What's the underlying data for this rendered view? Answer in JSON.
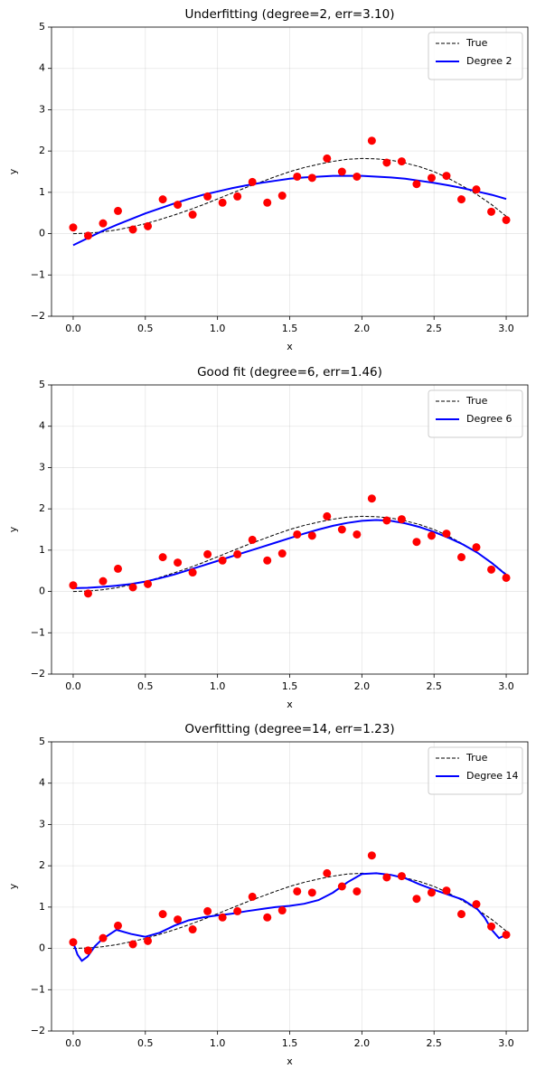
{
  "chart_data": [
    {
      "type": "line",
      "title": "Underfitting (degree=2, err=3.10)",
      "x_label": "x",
      "y_label": "y",
      "xlim": [
        -0.15,
        3.15
      ],
      "ylim": [
        -2,
        5
      ],
      "xticks": [
        {
          "value": 0,
          "label": "0.0"
        },
        {
          "value": 0.5,
          "label": "0.5"
        },
        {
          "value": 1,
          "label": "1.0"
        },
        {
          "value": 1.5,
          "label": "1.5"
        },
        {
          "value": 2,
          "label": "2.0"
        },
        {
          "value": 2.5,
          "label": "2.5"
        },
        {
          "value": 3,
          "label": "3.0"
        }
      ],
      "yticks": [
        {
          "value": -2,
          "label": "−2"
        },
        {
          "value": -1,
          "label": "−1"
        },
        0,
        1,
        2,
        3,
        4,
        5
      ],
      "grid": true,
      "legend": "upper right",
      "series": [
        {
          "name": "True",
          "color": "#000000",
          "style": "dashed",
          "x": [
            0,
            0.1,
            0.2,
            0.3,
            0.4,
            0.5,
            0.6,
            0.7,
            0.8,
            0.9,
            1.0,
            1.1,
            1.2,
            1.3,
            1.4,
            1.5,
            1.6,
            1.7,
            1.8,
            1.9,
            2.0,
            2.1,
            2.2,
            2.3,
            2.4,
            2.5,
            2.6,
            2.7,
            2.8,
            2.9,
            3.0
          ],
          "values": [
            0,
            0.01,
            0.04,
            0.09,
            0.16,
            0.24,
            0.34,
            0.45,
            0.57,
            0.7,
            0.84,
            0.98,
            1.12,
            1.25,
            1.38,
            1.5,
            1.6,
            1.68,
            1.75,
            1.8,
            1.82,
            1.81,
            1.78,
            1.71,
            1.62,
            1.5,
            1.34,
            1.15,
            0.94,
            0.7,
            0.42
          ]
        },
        {
          "name": "Degree 2",
          "color": "#0000ff",
          "style": "solid",
          "x": [
            0,
            0.1,
            0.2,
            0.3,
            0.4,
            0.5,
            0.6,
            0.7,
            0.8,
            0.9,
            1.0,
            1.1,
            1.2,
            1.3,
            1.4,
            1.5,
            1.6,
            1.7,
            1.8,
            1.9,
            2.0,
            2.1,
            2.2,
            2.3,
            2.4,
            2.5,
            2.6,
            2.7,
            2.8,
            2.9,
            3.0
          ],
          "values": [
            -0.28,
            -0.11,
            0.06,
            0.21,
            0.35,
            0.49,
            0.61,
            0.73,
            0.84,
            0.94,
            1.02,
            1.1,
            1.17,
            1.23,
            1.28,
            1.33,
            1.36,
            1.38,
            1.4,
            1.4,
            1.4,
            1.38,
            1.36,
            1.33,
            1.28,
            1.23,
            1.17,
            1.1,
            1.02,
            0.94,
            0.84
          ]
        },
        {
          "color": "#ff0000",
          "style": "marker",
          "x": [
            0,
            0.1034,
            0.2069,
            0.3103,
            0.4138,
            0.5172,
            0.6207,
            0.7241,
            0.8276,
            0.931,
            1.0345,
            1.1379,
            1.2414,
            1.3448,
            1.4483,
            1.5517,
            1.6552,
            1.7586,
            1.8621,
            1.9655,
            2.069,
            2.1724,
            2.2759,
            2.3793,
            2.4828,
            2.5862,
            2.6897,
            2.7931,
            2.8966,
            3.0
          ],
          "values": [
            0.15,
            -0.05,
            0.25,
            0.55,
            0.1,
            0.18,
            0.83,
            0.7,
            0.46,
            0.9,
            0.75,
            0.9,
            1.25,
            0.75,
            0.92,
            1.38,
            1.35,
            1.82,
            1.5,
            1.38,
            2.25,
            1.72,
            1.75,
            1.2,
            1.35,
            1.4,
            0.83,
            1.07,
            0.53,
            0.33
          ]
        }
      ]
    },
    {
      "type": "line",
      "title": "Good fit (degree=6, err=1.46)",
      "x_label": "x",
      "y_label": "y",
      "xlim": [
        -0.15,
        3.15
      ],
      "ylim": [
        -2,
        5
      ],
      "xticks": [
        {
          "value": 0,
          "label": "0.0"
        },
        {
          "value": 0.5,
          "label": "0.5"
        },
        {
          "value": 1,
          "label": "1.0"
        },
        {
          "value": 1.5,
          "label": "1.5"
        },
        {
          "value": 2,
          "label": "2.0"
        },
        {
          "value": 2.5,
          "label": "2.5"
        },
        {
          "value": 3,
          "label": "3.0"
        }
      ],
      "yticks": [
        {
          "value": -2,
          "label": "−2"
        },
        {
          "value": -1,
          "label": "−1"
        },
        0,
        1,
        2,
        3,
        4,
        5
      ],
      "grid": true,
      "legend": "upper right",
      "series": [
        {
          "name": "True",
          "color": "#000000",
          "style": "dashed",
          "x": [
            0,
            0.1,
            0.2,
            0.3,
            0.4,
            0.5,
            0.6,
            0.7,
            0.8,
            0.9,
            1.0,
            1.1,
            1.2,
            1.3,
            1.4,
            1.5,
            1.6,
            1.7,
            1.8,
            1.9,
            2.0,
            2.1,
            2.2,
            2.3,
            2.4,
            2.5,
            2.6,
            2.7,
            2.8,
            2.9,
            3.0
          ],
          "values": [
            0,
            0.01,
            0.04,
            0.09,
            0.16,
            0.24,
            0.34,
            0.45,
            0.57,
            0.7,
            0.84,
            0.98,
            1.12,
            1.25,
            1.38,
            1.5,
            1.6,
            1.68,
            1.75,
            1.8,
            1.82,
            1.81,
            1.78,
            1.71,
            1.62,
            1.5,
            1.34,
            1.15,
            0.94,
            0.7,
            0.42
          ]
        },
        {
          "name": "Degree 6",
          "color": "#0000ff",
          "style": "solid",
          "x": [
            0,
            0.1,
            0.2,
            0.3,
            0.4,
            0.5,
            0.6,
            0.7,
            0.8,
            0.9,
            1.0,
            1.1,
            1.2,
            1.3,
            1.4,
            1.5,
            1.6,
            1.7,
            1.8,
            1.9,
            2.0,
            2.1,
            2.2,
            2.3,
            2.4,
            2.5,
            2.6,
            2.7,
            2.8,
            2.9,
            3.0
          ],
          "values": [
            0.08,
            0.09,
            0.11,
            0.14,
            0.18,
            0.24,
            0.32,
            0.41,
            0.52,
            0.63,
            0.74,
            0.85,
            0.96,
            1.07,
            1.18,
            1.29,
            1.4,
            1.5,
            1.59,
            1.66,
            1.71,
            1.73,
            1.71,
            1.65,
            1.56,
            1.44,
            1.3,
            1.14,
            0.94,
            0.69,
            0.4
          ]
        },
        {
          "color": "#ff0000",
          "style": "marker",
          "x": [
            0,
            0.1034,
            0.2069,
            0.3103,
            0.4138,
            0.5172,
            0.6207,
            0.7241,
            0.8276,
            0.931,
            1.0345,
            1.1379,
            1.2414,
            1.3448,
            1.4483,
            1.5517,
            1.6552,
            1.7586,
            1.8621,
            1.9655,
            2.069,
            2.1724,
            2.2759,
            2.3793,
            2.4828,
            2.5862,
            2.6897,
            2.7931,
            2.8966,
            3.0
          ],
          "values": [
            0.15,
            -0.05,
            0.25,
            0.55,
            0.1,
            0.18,
            0.83,
            0.7,
            0.46,
            0.9,
            0.75,
            0.9,
            1.25,
            0.75,
            0.92,
            1.38,
            1.35,
            1.82,
            1.5,
            1.38,
            2.25,
            1.72,
            1.75,
            1.2,
            1.35,
            1.4,
            0.83,
            1.07,
            0.53,
            0.33
          ]
        }
      ]
    },
    {
      "type": "line",
      "title": "Overfitting (degree=14, err=1.23)",
      "x_label": "x",
      "y_label": "y",
      "xlim": [
        -0.15,
        3.15
      ],
      "ylim": [
        -2,
        5
      ],
      "xticks": [
        {
          "value": 0,
          "label": "0.0"
        },
        {
          "value": 0.5,
          "label": "0.5"
        },
        {
          "value": 1,
          "label": "1.0"
        },
        {
          "value": 1.5,
          "label": "1.5"
        },
        {
          "value": 2,
          "label": "2.0"
        },
        {
          "value": 2.5,
          "label": "2.5"
        },
        {
          "value": 3,
          "label": "3.0"
        }
      ],
      "yticks": [
        {
          "value": -2,
          "label": "−2"
        },
        {
          "value": -1,
          "label": "−1"
        },
        0,
        1,
        2,
        3,
        4,
        5
      ],
      "grid": true,
      "legend": "upper right",
      "series": [
        {
          "name": "True",
          "color": "#000000",
          "style": "dashed",
          "x": [
            0,
            0.1,
            0.2,
            0.3,
            0.4,
            0.5,
            0.6,
            0.7,
            0.8,
            0.9,
            1.0,
            1.1,
            1.2,
            1.3,
            1.4,
            1.5,
            1.6,
            1.7,
            1.8,
            1.9,
            2.0,
            2.1,
            2.2,
            2.3,
            2.4,
            2.5,
            2.6,
            2.7,
            2.8,
            2.9,
            3.0
          ],
          "values": [
            0,
            0.01,
            0.04,
            0.09,
            0.16,
            0.24,
            0.34,
            0.45,
            0.57,
            0.7,
            0.84,
            0.98,
            1.12,
            1.25,
            1.38,
            1.5,
            1.6,
            1.68,
            1.75,
            1.8,
            1.82,
            1.81,
            1.78,
            1.71,
            1.62,
            1.5,
            1.34,
            1.15,
            0.94,
            0.7,
            0.42
          ]
        },
        {
          "name": "Degree 14",
          "color": "#0000ff",
          "style": "solid",
          "x": [
            0,
            0.03,
            0.06,
            0.1,
            0.15,
            0.2,
            0.3,
            0.4,
            0.5,
            0.6,
            0.7,
            0.8,
            0.9,
            1.0,
            1.1,
            1.2,
            1.3,
            1.4,
            1.5,
            1.6,
            1.7,
            1.8,
            1.9,
            2.0,
            2.1,
            2.2,
            2.3,
            2.4,
            2.5,
            2.6,
            2.7,
            2.8,
            2.85,
            2.9,
            2.95,
            3.0
          ],
          "values": [
            0.15,
            -0.15,
            -0.3,
            -0.2,
            0.05,
            0.22,
            0.45,
            0.35,
            0.28,
            0.38,
            0.55,
            0.68,
            0.75,
            0.8,
            0.84,
            0.9,
            0.95,
            1.0,
            1.03,
            1.08,
            1.17,
            1.35,
            1.6,
            1.8,
            1.82,
            1.78,
            1.7,
            1.55,
            1.42,
            1.3,
            1.18,
            0.95,
            0.75,
            0.45,
            0.25,
            0.33
          ]
        },
        {
          "color": "#ff0000",
          "style": "marker",
          "x": [
            0,
            0.1034,
            0.2069,
            0.3103,
            0.4138,
            0.5172,
            0.6207,
            0.7241,
            0.8276,
            0.931,
            1.0345,
            1.1379,
            1.2414,
            1.3448,
            1.4483,
            1.5517,
            1.6552,
            1.7586,
            1.8621,
            1.9655,
            2.069,
            2.1724,
            2.2759,
            2.3793,
            2.4828,
            2.5862,
            2.6897,
            2.7931,
            2.8966,
            3.0
          ],
          "values": [
            0.15,
            -0.05,
            0.25,
            0.55,
            0.1,
            0.18,
            0.83,
            0.7,
            0.46,
            0.9,
            0.75,
            0.9,
            1.25,
            0.75,
            0.92,
            1.38,
            1.35,
            1.82,
            1.5,
            1.38,
            2.25,
            1.72,
            1.75,
            1.2,
            1.35,
            1.4,
            0.83,
            1.07,
            0.53,
            0.33
          ]
        }
      ]
    }
  ]
}
